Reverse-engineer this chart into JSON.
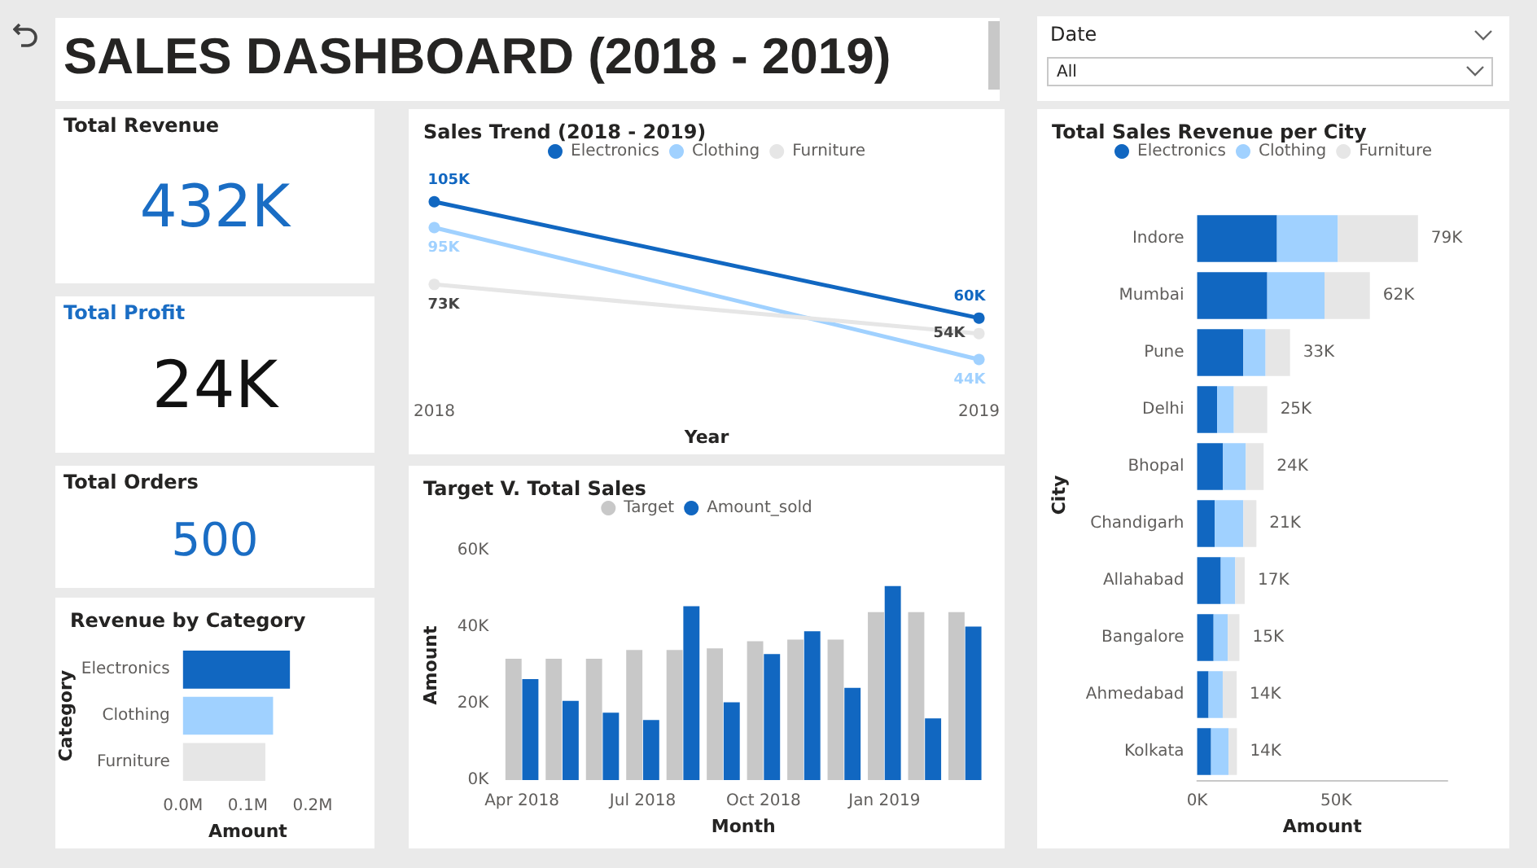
{
  "chart_data": [
    {
      "type": "other",
      "title": "SALES DASHBOARD (2018 - 2019)"
    },
    {
      "type": "other",
      "title": "Date",
      "annotations": [
        "All"
      ]
    },
    {
      "type": "other",
      "title": "Total Revenue",
      "annotations": [
        "432K"
      ]
    },
    {
      "type": "line",
      "title": "Sales Trend (2018 - 2019)",
      "xlabel": "Year",
      "categories": [
        "2018",
        "2019"
      ],
      "legend": "top",
      "marker": "circle",
      "tick_labels": "x",
      "series": [
        {
          "name": "Electronics",
          "color": "#1167c1",
          "values": [
            105,
            60
          ],
          "value_labels": [
            "105K",
            "60K"
          ]
        },
        {
          "name": "Clothing",
          "color": "#a0d1ff",
          "values": [
            95,
            44
          ],
          "value_labels": [
            "95K",
            "44K"
          ]
        },
        {
          "name": "Furniture",
          "color": "#e6e6e6",
          "values": [
            73,
            54
          ],
          "value_labels": [
            "73K",
            "54K"
          ]
        }
      ]
    },
    {
      "type": "bar",
      "orientation": "horizontal",
      "stacked": true,
      "title": "Total Sales Revenue per City",
      "xlabel": "Amount",
      "ylabel": "City",
      "legend": "top",
      "categories": [
        "Indore",
        "Mumbai",
        "Pune",
        "Delhi",
        "Bhopal",
        "Chandigarh",
        "Allahabad",
        "Bangalore",
        "Ahmedabad",
        "Kolkata"
      ],
      "xlim": [
        0,
        90
      ],
      "xticks": [
        {
          "value": 0,
          "label": "0K"
        },
        {
          "value": 50,
          "label": "50K"
        }
      ],
      "series": [
        {
          "name": "Electronics",
          "color": "#1167c1",
          "values": [
            28.7,
            25.2,
            16.6,
            7.2,
            9.3,
            6.3,
            8.5,
            5.9,
            4.1,
            5.0
          ]
        },
        {
          "name": "Clothing",
          "color": "#a0d1ff",
          "values": [
            21.9,
            20.6,
            8.0,
            6.0,
            8.2,
            10.3,
            5.2,
            5.1,
            5.1,
            6.3
          ]
        },
        {
          "name": "Furniture",
          "color": "#e6e6e6",
          "values": [
            28.8,
            16.3,
            8.8,
            12.0,
            6.4,
            4.7,
            3.4,
            4.2,
            5.0,
            3.0
          ]
        }
      ],
      "totals": [
        "79K",
        "62K",
        "33K",
        "25K",
        "24K",
        "21K",
        "17K",
        "15K",
        "14K",
        "14K"
      ]
    },
    {
      "type": "other",
      "title": "Total Profit",
      "annotations": [
        "24K"
      ]
    },
    {
      "type": "other",
      "title": "Total Orders",
      "annotations": [
        "500"
      ]
    },
    {
      "type": "bar",
      "title": "Target V. Total Sales",
      "xlabel": "Month",
      "ylabel": "Amount",
      "legend": "top",
      "categories": [
        "Apr 2018",
        null,
        null,
        "Jul 2018",
        null,
        null,
        "Oct 2018",
        null,
        null,
        "Jan 2019",
        null,
        null
      ],
      "ylim": [
        0,
        60
      ],
      "yticks": [
        {
          "value": 0,
          "label": "0K"
        },
        {
          "value": 20,
          "label": "20K"
        },
        {
          "value": 40,
          "label": "40K"
        },
        {
          "value": 60,
          "label": "60K"
        }
      ],
      "series": [
        {
          "name": "Target",
          "color": "#c8c8c8",
          "values": [
            31.7,
            31.7,
            31.7,
            34.0,
            34.0,
            34.4,
            36.3,
            36.7,
            36.7,
            43.9,
            43.9,
            43.9
          ]
        },
        {
          "name": "Amount_sold",
          "color": "#1167c1",
          "values": [
            26.4,
            20.7,
            17.6,
            15.7,
            45.4,
            20.3,
            32.9,
            38.9,
            24.1,
            50.7,
            16.1,
            40.1
          ]
        }
      ]
    },
    {
      "type": "bar",
      "orientation": "horizontal",
      "title": "Revenue by Category",
      "xlabel": "Amount",
      "ylabel": "Category",
      "categories": [
        "Electronics",
        "Clothing",
        "Furniture"
      ],
      "values": [
        0.165,
        0.139,
        0.127
      ],
      "colors": [
        "#1167c1",
        "#a0d1ff",
        "#e6e6e6"
      ],
      "xlim": [
        0,
        0.2
      ],
      "xticks": [
        {
          "value": 0,
          "label": "0.0M"
        },
        {
          "value": 0.1,
          "label": "0.1M"
        },
        {
          "value": 0.2,
          "label": "0.2M"
        }
      ]
    }
  ]
}
